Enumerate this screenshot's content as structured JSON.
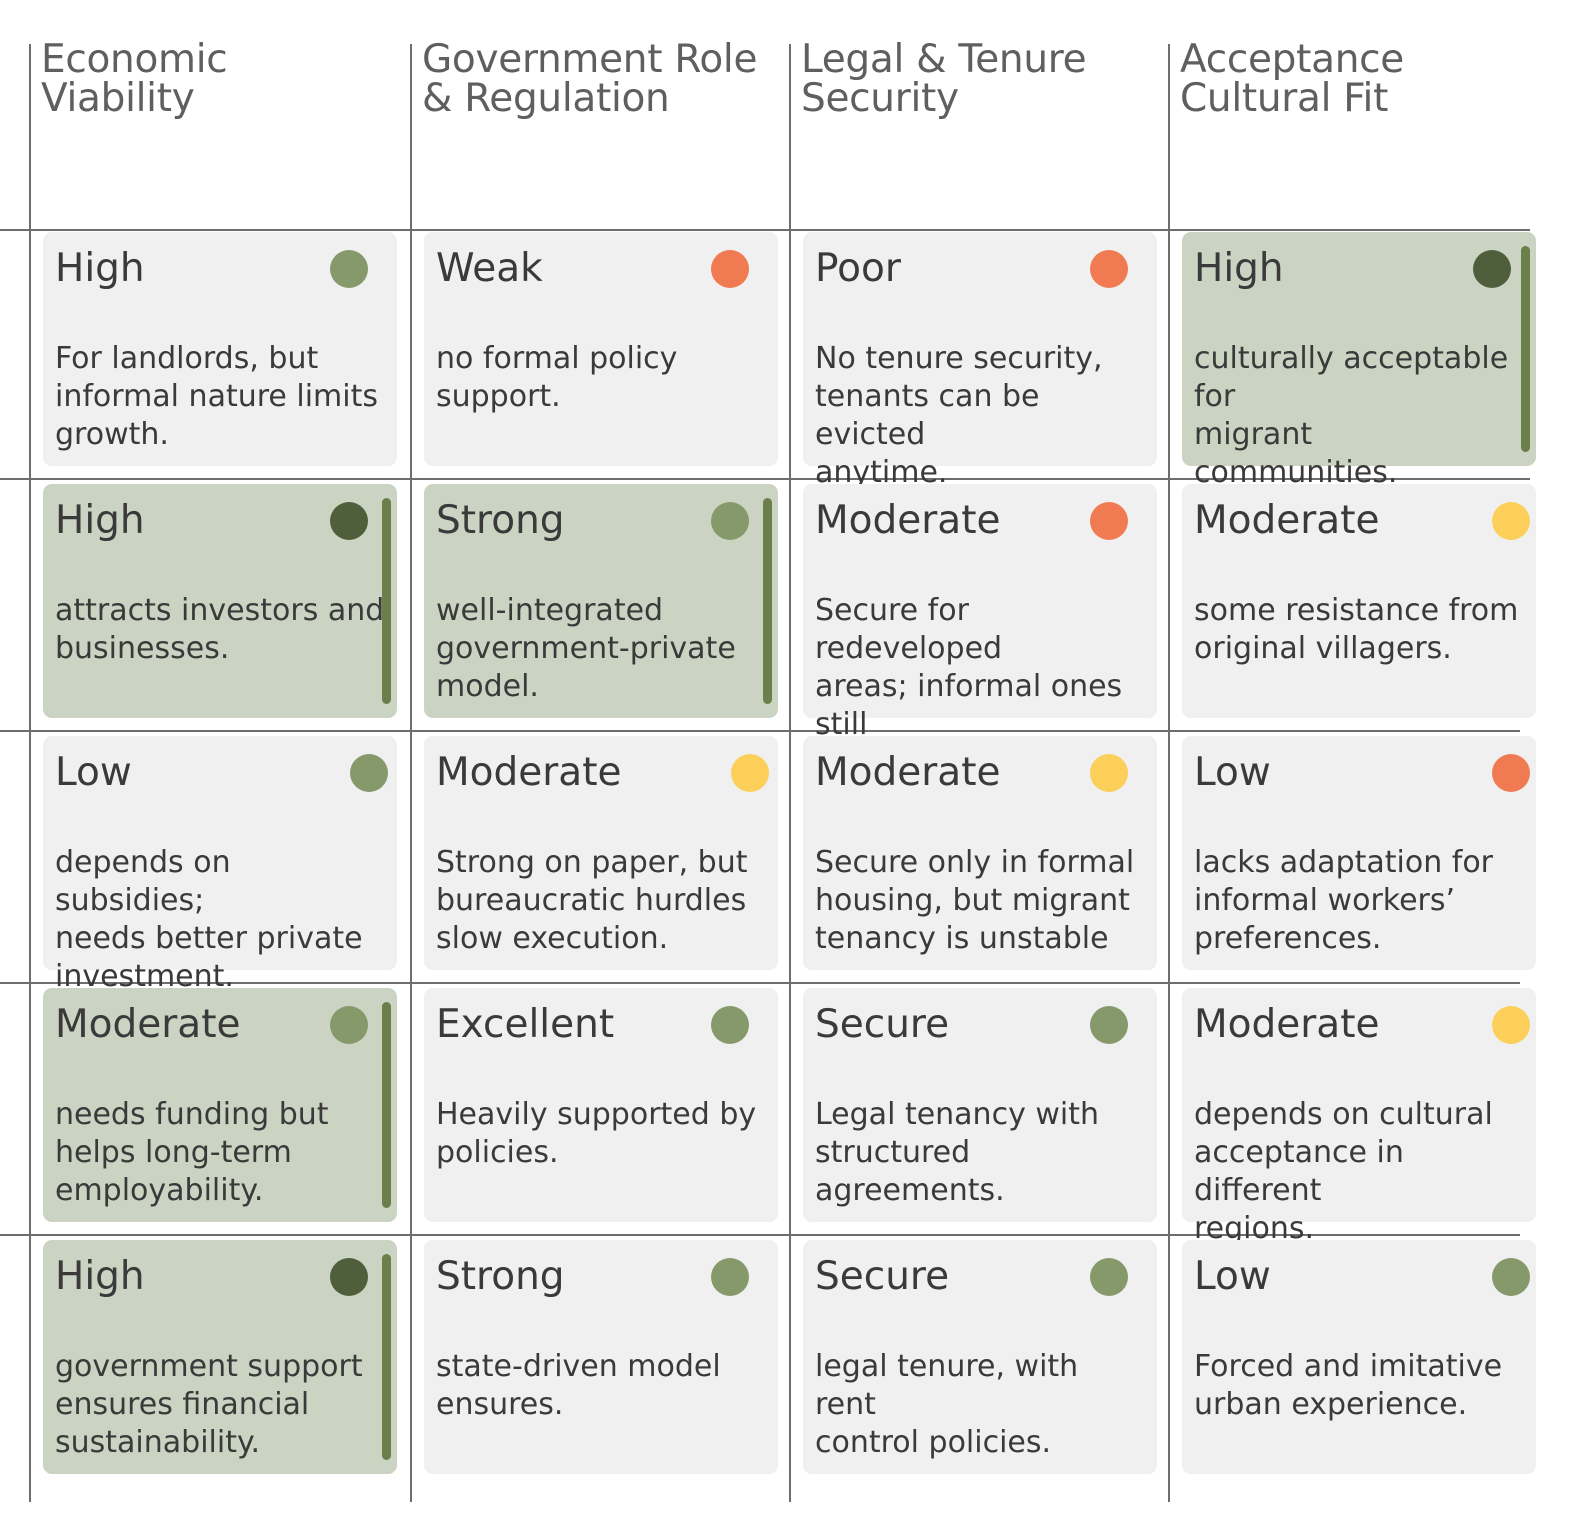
{
  "headers": [
    {
      "line1": "Economic",
      "line2": "Viability"
    },
    {
      "line1": "Government Role",
      "line2": "& Regulation"
    },
    {
      "line1": "Legal & Tenure",
      "line2": "Security"
    },
    {
      "line1": "Acceptance",
      "line2": "Cultural Fit"
    }
  ],
  "colors": {
    "card_bg": "#f0f0f0",
    "card_highlight_bg": "#cbd3c2",
    "accent_bar": "#6b7f4a",
    "status_dark_green": "#4f5f3c",
    "status_green": "#86996a",
    "status_orange": "#f07a52",
    "status_yellow": "#fbcf5a",
    "grid_line": "#6e6e6e"
  },
  "rows": [
    [
      {
        "rating": "High",
        "desc": "For landlords, but\ninformal nature limits\ngrowth.",
        "status": "green",
        "highlight": false
      },
      {
        "rating": "Weak",
        "desc": "no formal policy\nsupport.",
        "status": "orange",
        "highlight": false
      },
      {
        "rating": "Poor",
        "desc": "No tenure security,\ntenants can be evicted\nanytime.",
        "status": "orange",
        "highlight": false
      },
      {
        "rating": "High",
        "desc": "culturally acceptable for\nmigrant communities.",
        "status": "dark-green",
        "highlight": true
      }
    ],
    [
      {
        "rating": "High",
        "desc": "attracts investors and\nbusinesses.",
        "status": "dark-green",
        "highlight": true
      },
      {
        "rating": "Strong",
        "desc": "well-integrated\ngovernment-private\nmodel.",
        "status": "green",
        "highlight": true
      },
      {
        "rating": "Moderate",
        "desc": "Secure for redeveloped\nareas; informal ones still\nat risk.",
        "status": "orange",
        "highlight": false
      },
      {
        "rating": "Moderate",
        "desc": "some resistance from\noriginal villagers.",
        "status": "yellow",
        "highlight": false
      }
    ],
    [
      {
        "rating": "Low",
        "desc": "depends on subsidies;\nneeds better private\ninvestment.",
        "status": "green",
        "highlight": false
      },
      {
        "rating": "Moderate",
        "desc": "Strong on paper, but\nbureaucratic hurdles\nslow execution.",
        "status": "yellow",
        "highlight": false
      },
      {
        "rating": "Moderate",
        "desc": "Secure only in formal\nhousing, but migrant\ntenancy is unstable",
        "status": "yellow",
        "highlight": false
      },
      {
        "rating": "Low",
        "desc": "lacks adaptation for\ninformal workers’\npreferences.",
        "status": "orange",
        "highlight": false
      }
    ],
    [
      {
        "rating": "Moderate",
        "desc": "needs funding but\nhelps long-term\nemployability.",
        "status": "green",
        "highlight": true
      },
      {
        "rating": "Excellent",
        "desc": "Heavily supported by\npolicies.",
        "status": "green",
        "highlight": false
      },
      {
        "rating": "Secure",
        "desc": "Legal tenancy with\nstructured agreements.",
        "status": "green",
        "highlight": false
      },
      {
        "rating": "Moderate",
        "desc": "depends on cultural\nacceptance in different\nregions.",
        "status": "yellow",
        "highlight": false
      }
    ],
    [
      {
        "rating": "High",
        "desc": "government support\nensures financial\nsustainability.",
        "status": "dark-green",
        "highlight": true
      },
      {
        "rating": "Strong",
        "desc": "state-driven model\nensures.",
        "status": "green",
        "highlight": false
      },
      {
        "rating": "Secure",
        "desc": "legal tenure, with rent\ncontrol policies.",
        "status": "green",
        "highlight": false
      },
      {
        "rating": "Low",
        "desc": "Forced and imitative\nurban experience.",
        "status": "green",
        "highlight": false
      }
    ]
  ]
}
